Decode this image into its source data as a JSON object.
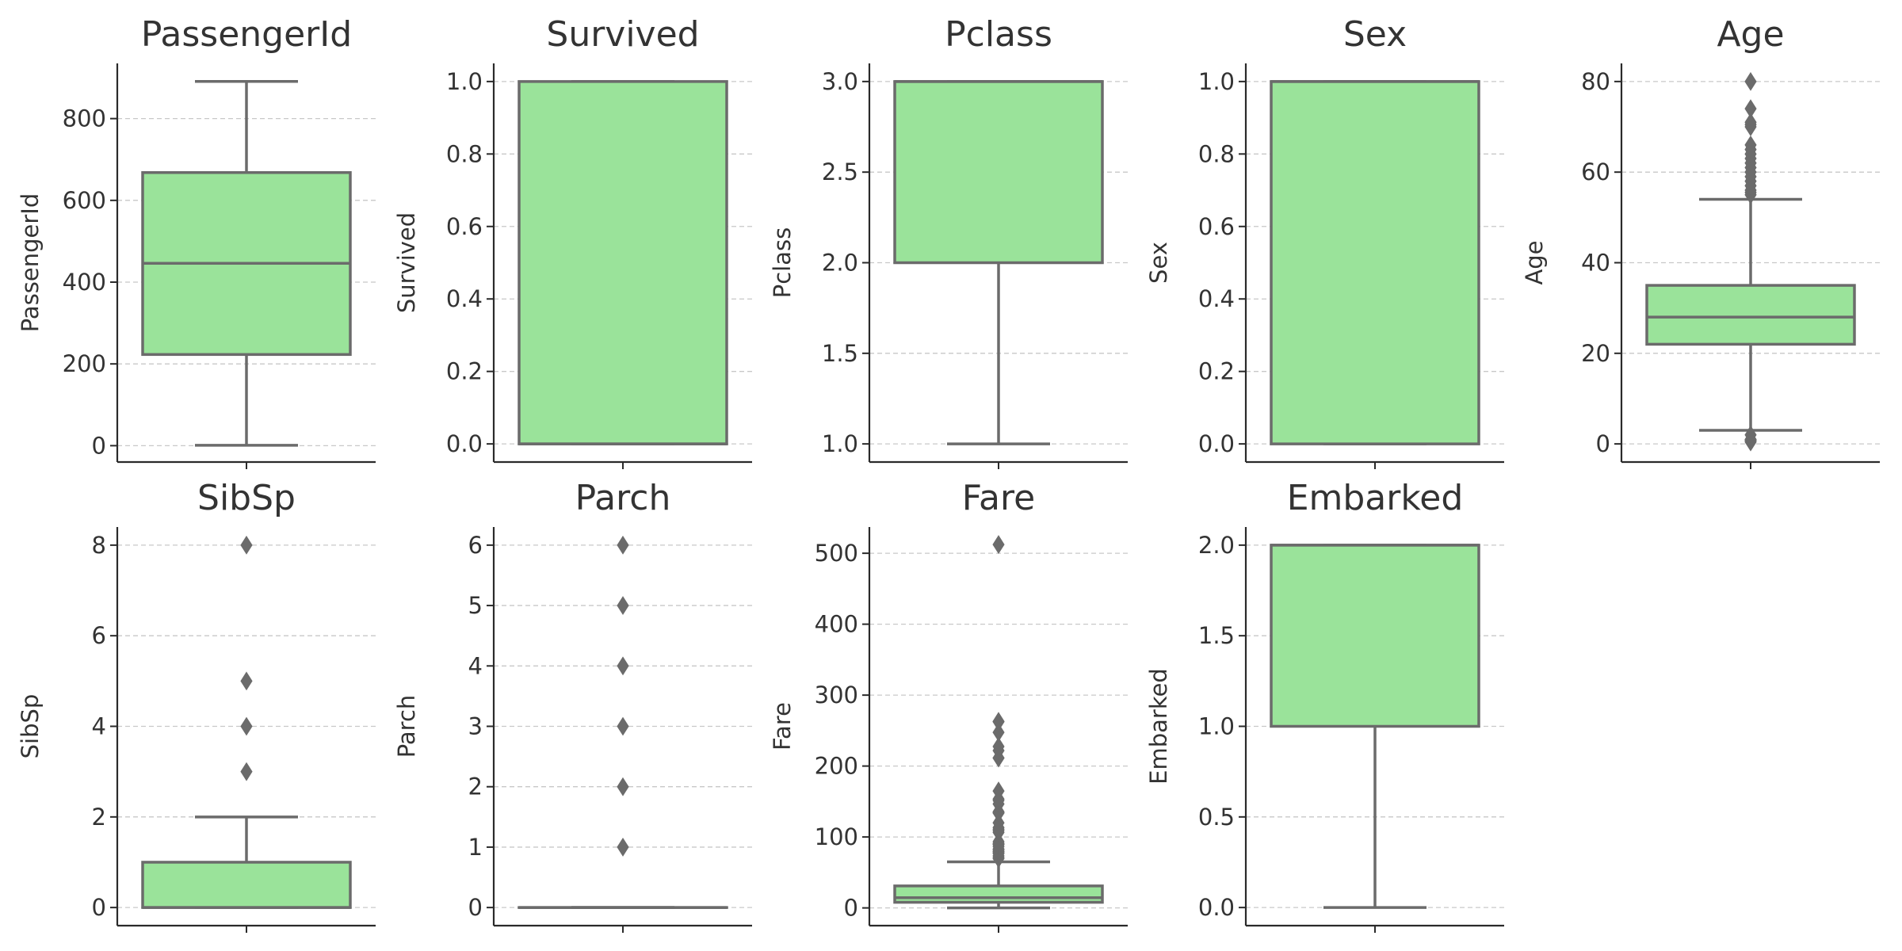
{
  "chart_data": [
    {
      "type": "box",
      "title": "PassengerId",
      "ylabel": "PassengerId",
      "ylim": [
        -40,
        935
      ],
      "yticks": [
        0,
        200,
        400,
        600,
        800
      ],
      "ytick_labels": [
        "0",
        "200",
        "400",
        "600",
        "800"
      ],
      "box": {
        "whislo": 1,
        "q1": 223,
        "med": 446,
        "q3": 668,
        "whishi": 891
      },
      "fliers": []
    },
    {
      "type": "box",
      "title": "Survived",
      "ylabel": "Survived",
      "ylim": [
        -0.05,
        1.05
      ],
      "yticks": [
        0.0,
        0.2,
        0.4,
        0.6,
        0.8,
        1.0
      ],
      "ytick_labels": [
        "0.0",
        "0.2",
        "0.4",
        "0.6",
        "0.8",
        "1.0"
      ],
      "box": {
        "whislo": 0,
        "q1": 0,
        "med": 0,
        "q3": 1,
        "whishi": 1
      },
      "fliers": []
    },
    {
      "type": "box",
      "title": "Pclass",
      "ylabel": "Pclass",
      "ylim": [
        0.9,
        3.1
      ],
      "yticks": [
        1.0,
        1.5,
        2.0,
        2.5,
        3.0
      ],
      "ytick_labels": [
        "1.0",
        "1.5",
        "2.0",
        "2.5",
        "3.0"
      ],
      "box": {
        "whislo": 1,
        "q1": 2,
        "med": 3,
        "q3": 3,
        "whishi": 3
      },
      "fliers": []
    },
    {
      "type": "box",
      "title": "Sex",
      "ylabel": "Sex",
      "ylim": [
        -0.05,
        1.05
      ],
      "yticks": [
        0.0,
        0.2,
        0.4,
        0.6,
        0.8,
        1.0
      ],
      "ytick_labels": [
        "0.0",
        "0.2",
        "0.4",
        "0.6",
        "0.8",
        "1.0"
      ],
      "box": {
        "whislo": 0,
        "q1": 0,
        "med": 1,
        "q3": 1,
        "whishi": 1
      },
      "fliers": []
    },
    {
      "type": "box",
      "title": "Age",
      "ylabel": "Age",
      "ylim": [
        -4,
        84
      ],
      "yticks": [
        0,
        20,
        40,
        60,
        80
      ],
      "ytick_labels": [
        "0",
        "20",
        "40",
        "60",
        "80"
      ],
      "box": {
        "whislo": 3,
        "q1": 22,
        "med": 28,
        "q3": 35,
        "whishi": 54
      },
      "fliers": [
        0.42,
        0.67,
        0.75,
        0.83,
        0.92,
        1,
        2,
        55,
        55.5,
        56,
        57,
        58,
        59,
        60,
        61,
        62,
        63,
        64,
        65,
        66,
        70,
        70.5,
        71,
        74,
        80
      ]
    },
    {
      "type": "box",
      "title": "SibSp",
      "ylabel": "SibSp",
      "ylim": [
        -0.4,
        8.4
      ],
      "yticks": [
        0,
        2,
        4,
        6,
        8
      ],
      "ytick_labels": [
        "0",
        "2",
        "4",
        "6",
        "8"
      ],
      "box": {
        "whislo": 0,
        "q1": 0,
        "med": 0,
        "q3": 1,
        "whishi": 2
      },
      "fliers": [
        3,
        4,
        5,
        8
      ]
    },
    {
      "type": "box",
      "title": "Parch",
      "ylabel": "Parch",
      "ylim": [
        -0.3,
        6.3
      ],
      "yticks": [
        0,
        1,
        2,
        3,
        4,
        5,
        6
      ],
      "ytick_labels": [
        "0",
        "1",
        "2",
        "3",
        "4",
        "5",
        "6"
      ],
      "box": {
        "whislo": 0,
        "q1": 0,
        "med": 0,
        "q3": 0,
        "whishi": 0
      },
      "fliers": [
        1,
        2,
        3,
        4,
        5,
        6
      ]
    },
    {
      "type": "box",
      "title": "Fare",
      "ylabel": "Fare",
      "ylim": [
        -25,
        537
      ],
      "yticks": [
        0,
        100,
        200,
        300,
        400,
        500
      ],
      "ytick_labels": [
        "0",
        "100",
        "200",
        "300",
        "400",
        "500"
      ],
      "box": {
        "whislo": 0,
        "q1": 7.9,
        "med": 14.45,
        "q3": 31,
        "whishi": 65
      },
      "fliers": [
        69.55,
        71.28,
        73.5,
        76.73,
        77.29,
        78.85,
        79.2,
        80,
        82.17,
        83.16,
        86.5,
        89.1,
        90,
        91.08,
        93.5,
        106.43,
        108.9,
        110.88,
        113.28,
        120,
        133.65,
        134.5,
        135.63,
        146.52,
        151.55,
        153.46,
        164.87,
        211.34,
        211.5,
        221.78,
        227.53,
        247.52,
        262.38,
        263,
        512.33
      ]
    },
    {
      "type": "box",
      "title": "Embarked",
      "ylabel": "Embarked",
      "ylim": [
        -0.1,
        2.1
      ],
      "yticks": [
        0.0,
        0.5,
        1.0,
        1.5,
        2.0
      ],
      "ytick_labels": [
        "0.0",
        "0.5",
        "1.0",
        "1.5",
        "2.0"
      ],
      "box": {
        "whislo": 0,
        "q1": 1,
        "med": 2,
        "q3": 2,
        "whishi": 2
      },
      "fliers": []
    }
  ],
  "colors": {
    "box_fill": "#9ae39a",
    "box_edge": "#6b6b6b",
    "grid": "#c8c8c8",
    "axis": "#2a2a2a",
    "text": "#333333"
  },
  "grid": true,
  "grid_style": "dashed horizontal"
}
